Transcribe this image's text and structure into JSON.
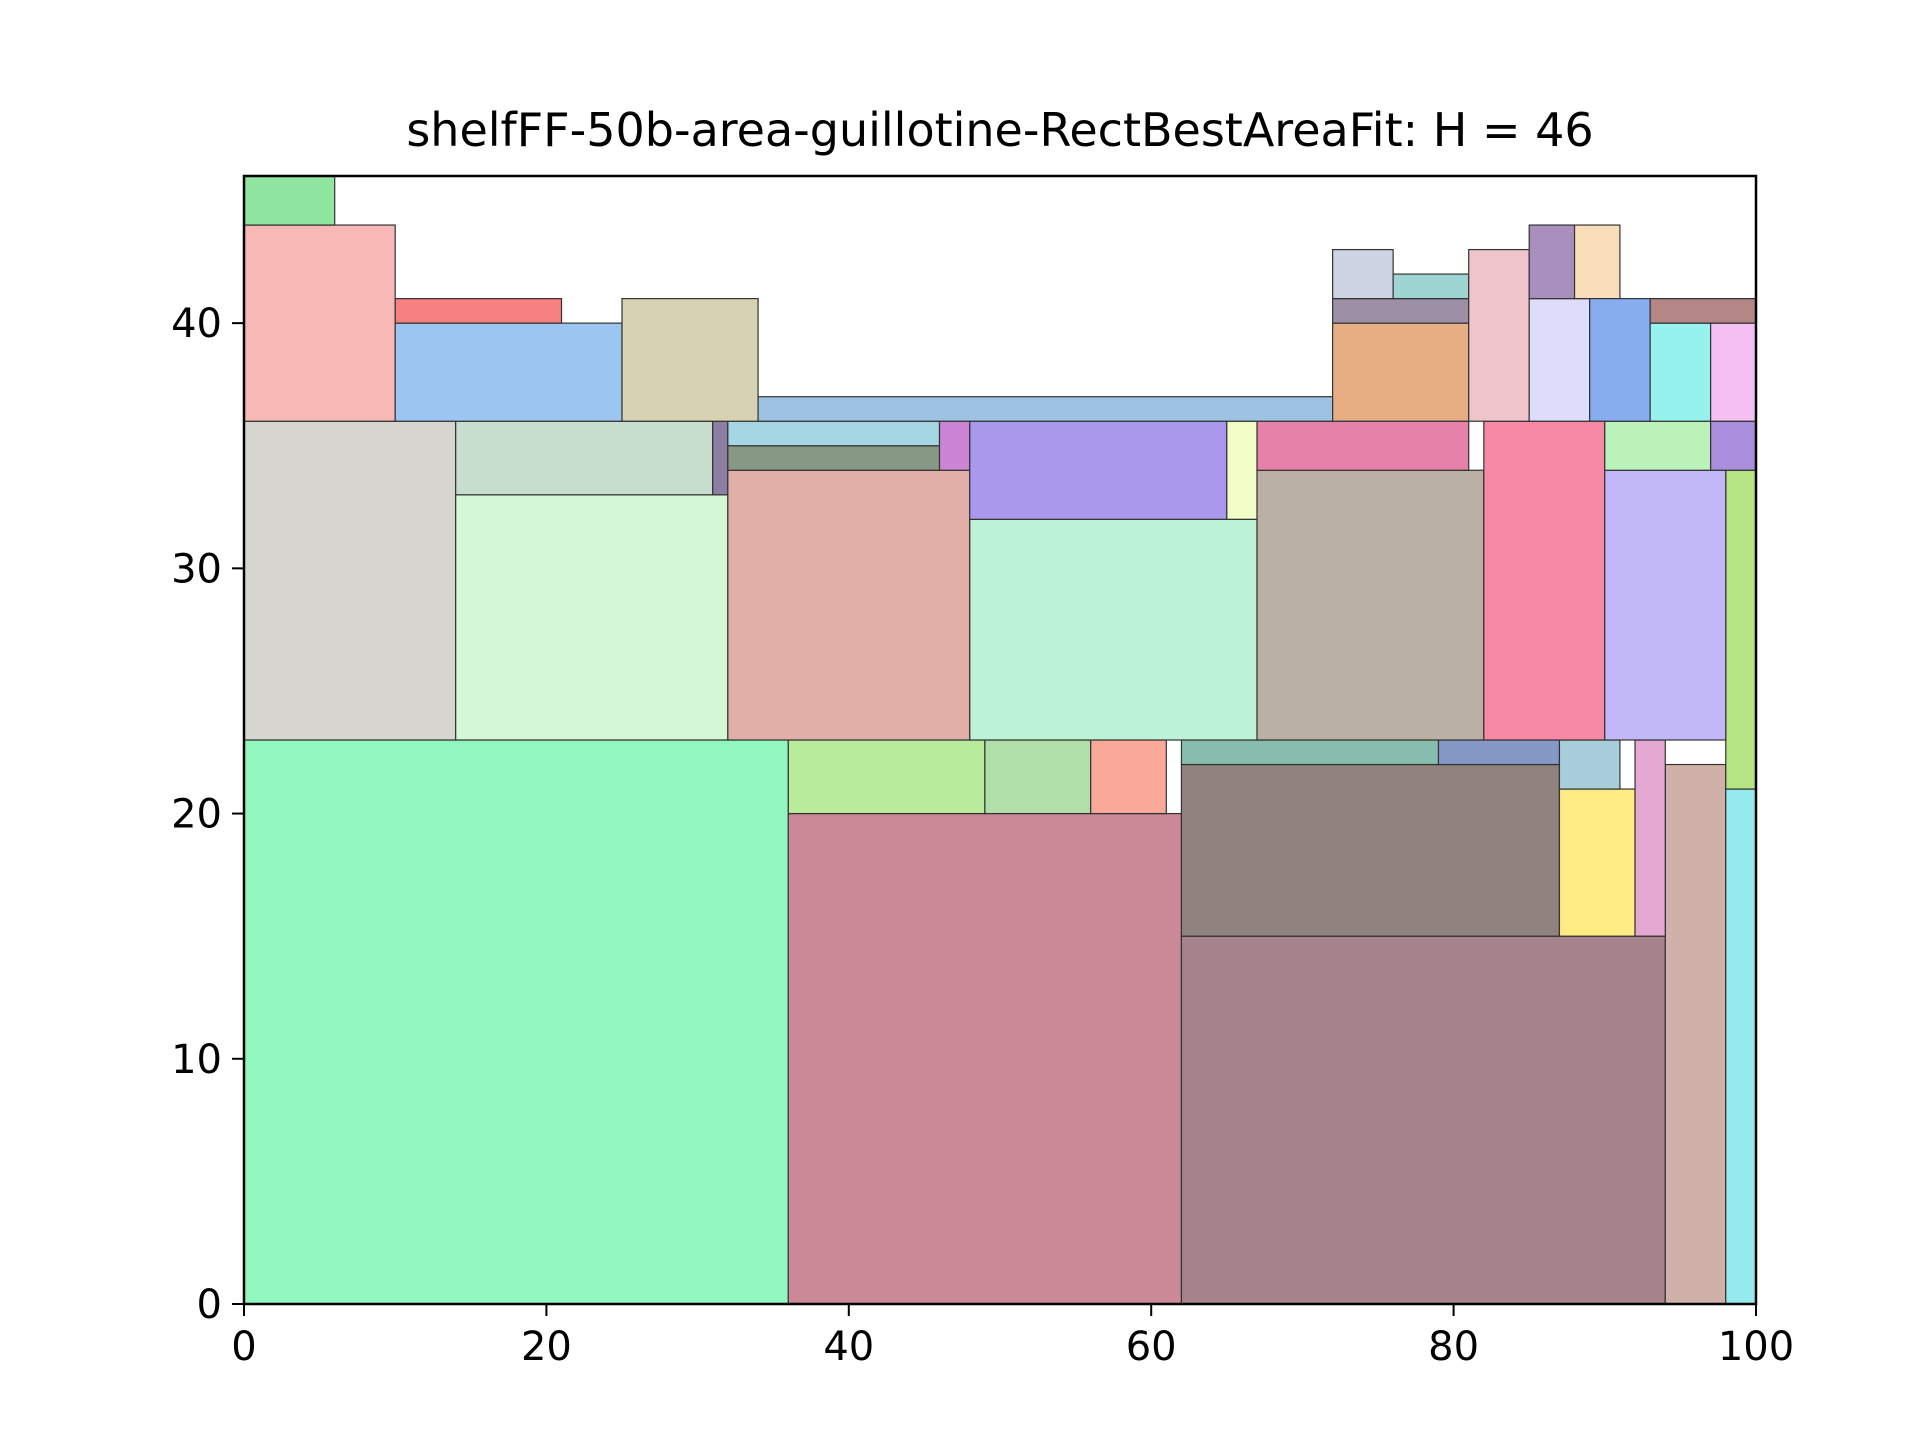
{
  "chart_data": {
    "type": "rectangle_packing",
    "title": "shelfFF-50b-area-guillotine-RectBestAreaFit: H = 46",
    "xlim": [
      0,
      100
    ],
    "ylim": [
      0,
      46
    ],
    "xticks": [
      0,
      20,
      40,
      60,
      80,
      100
    ],
    "yticks": [
      0,
      10,
      20,
      30,
      40
    ],
    "xtick_labels": [
      "0",
      "20",
      "40",
      "60",
      "80",
      "100"
    ],
    "ytick_labels": [
      "0",
      "10",
      "20",
      "30",
      "40"
    ],
    "grid": false,
    "rects": [
      {
        "x": 0,
        "y": 0,
        "w": 36,
        "h": 23,
        "color": "#90f7bf"
      },
      {
        "x": 36,
        "y": 0,
        "w": 26,
        "h": 20,
        "color": "#cb8896"
      },
      {
        "x": 62,
        "y": 0,
        "w": 32,
        "h": 15,
        "color": "#a6828b"
      },
      {
        "x": 94,
        "y": 0,
        "w": 4,
        "h": 22,
        "color": "#cfb1a9"
      },
      {
        "x": 98,
        "y": 0,
        "w": 2,
        "h": 21,
        "color": "#96e9ec"
      },
      {
        "x": 98,
        "y": 21,
        "w": 2,
        "h": 13,
        "color": "#b5e483"
      },
      {
        "x": 62,
        "y": 15,
        "w": 25,
        "h": 7,
        "color": "#8f827f"
      },
      {
        "x": 87,
        "y": 15,
        "w": 5,
        "h": 6,
        "color": "#ffec84"
      },
      {
        "x": 92,
        "y": 15,
        "w": 2,
        "h": 8,
        "color": "#e4a8d3"
      },
      {
        "x": 36,
        "y": 20,
        "w": 13,
        "h": 3,
        "color": "#b8eb9a"
      },
      {
        "x": 49,
        "y": 20,
        "w": 7,
        "h": 3,
        "color": "#b0dfa9"
      },
      {
        "x": 56,
        "y": 20,
        "w": 5,
        "h": 3,
        "color": "#f9a89a"
      },
      {
        "x": 62,
        "y": 22,
        "w": 17,
        "h": 1,
        "color": "#88bdae"
      },
      {
        "x": 79,
        "y": 22,
        "w": 8,
        "h": 1,
        "color": "#8698c6"
      },
      {
        "x": 87,
        "y": 21,
        "w": 4,
        "h": 2,
        "color": "#a8cedc"
      },
      {
        "x": 0,
        "y": 23,
        "w": 14,
        "h": 13,
        "color": "#d7d5d0"
      },
      {
        "x": 14,
        "y": 23,
        "w": 18,
        "h": 10,
        "color": "#d4f8d5"
      },
      {
        "x": 14,
        "y": 33,
        "w": 17,
        "h": 3,
        "color": "#c7ddce"
      },
      {
        "x": 31,
        "y": 33,
        "w": 1,
        "h": 3,
        "color": "#8d7fa2"
      },
      {
        "x": 32,
        "y": 23,
        "w": 16,
        "h": 11,
        "color": "#e0b0a8"
      },
      {
        "x": 32,
        "y": 34,
        "w": 14,
        "h": 1,
        "color": "#879985"
      },
      {
        "x": 32,
        "y": 35,
        "w": 14,
        "h": 1,
        "color": "#a6d6e3"
      },
      {
        "x": 46,
        "y": 34,
        "w": 2,
        "h": 2,
        "color": "#ca86d5"
      },
      {
        "x": 48,
        "y": 23,
        "w": 19,
        "h": 9,
        "color": "#bcf2d6"
      },
      {
        "x": 48,
        "y": 32,
        "w": 17,
        "h": 4,
        "color": "#aa98ed"
      },
      {
        "x": 65,
        "y": 32,
        "w": 2,
        "h": 4,
        "color": "#f2fcc6"
      },
      {
        "x": 67,
        "y": 23,
        "w": 15,
        "h": 11,
        "color": "#bab0a3"
      },
      {
        "x": 67,
        "y": 34,
        "w": 14,
        "h": 2,
        "color": "#e681aa"
      },
      {
        "x": 82,
        "y": 23,
        "w": 8,
        "h": 13,
        "color": "#f788a6"
      },
      {
        "x": 90,
        "y": 23,
        "w": 8,
        "h": 11,
        "color": "#c3b8f7"
      },
      {
        "x": 90,
        "y": 34,
        "w": 7,
        "h": 2,
        "color": "#bbf2b9"
      },
      {
        "x": 97,
        "y": 34,
        "w": 3,
        "h": 2,
        "color": "#a88edb"
      },
      {
        "x": 0,
        "y": 36,
        "w": 10,
        "h": 8,
        "color": "#f8b8b6"
      },
      {
        "x": 0,
        "y": 44,
        "w": 6,
        "h": 2,
        "color": "#90e5a0"
      },
      {
        "x": 10,
        "y": 36,
        "w": 15,
        "h": 4,
        "color": "#9cc5f1"
      },
      {
        "x": 10,
        "y": 40,
        "w": 11,
        "h": 1,
        "color": "#f78181"
      },
      {
        "x": 25,
        "y": 36,
        "w": 9,
        "h": 5,
        "color": "#d8d2b4"
      },
      {
        "x": 34,
        "y": 36,
        "w": 38,
        "h": 1,
        "color": "#9ec2e2"
      },
      {
        "x": 72,
        "y": 36,
        "w": 9,
        "h": 4,
        "color": "#e7ae84"
      },
      {
        "x": 72,
        "y": 40,
        "w": 9,
        "h": 1,
        "color": "#9d90a6"
      },
      {
        "x": 72,
        "y": 41,
        "w": 4,
        "h": 2,
        "color": "#ccd3e3"
      },
      {
        "x": 76,
        "y": 41,
        "w": 5,
        "h": 1,
        "color": "#9ed5d2"
      },
      {
        "x": 81,
        "y": 36,
        "w": 4,
        "h": 7,
        "color": "#efc5cb"
      },
      {
        "x": 85,
        "y": 36,
        "w": 4,
        "h": 5,
        "color": "#dedcfb"
      },
      {
        "x": 85,
        "y": 41,
        "w": 3,
        "h": 3,
        "color": "#a98fbd"
      },
      {
        "x": 88,
        "y": 41,
        "w": 3,
        "h": 3,
        "color": "#f9dfb9"
      },
      {
        "x": 89,
        "y": 36,
        "w": 4,
        "h": 5,
        "color": "#88adef"
      },
      {
        "x": 93,
        "y": 36,
        "w": 4,
        "h": 4,
        "color": "#96f2ed"
      },
      {
        "x": 97,
        "y": 36,
        "w": 3,
        "h": 4,
        "color": "#f4c0f4"
      },
      {
        "x": 93,
        "y": 40,
        "w": 7,
        "h": 1,
        "color": "#b48686"
      }
    ]
  }
}
